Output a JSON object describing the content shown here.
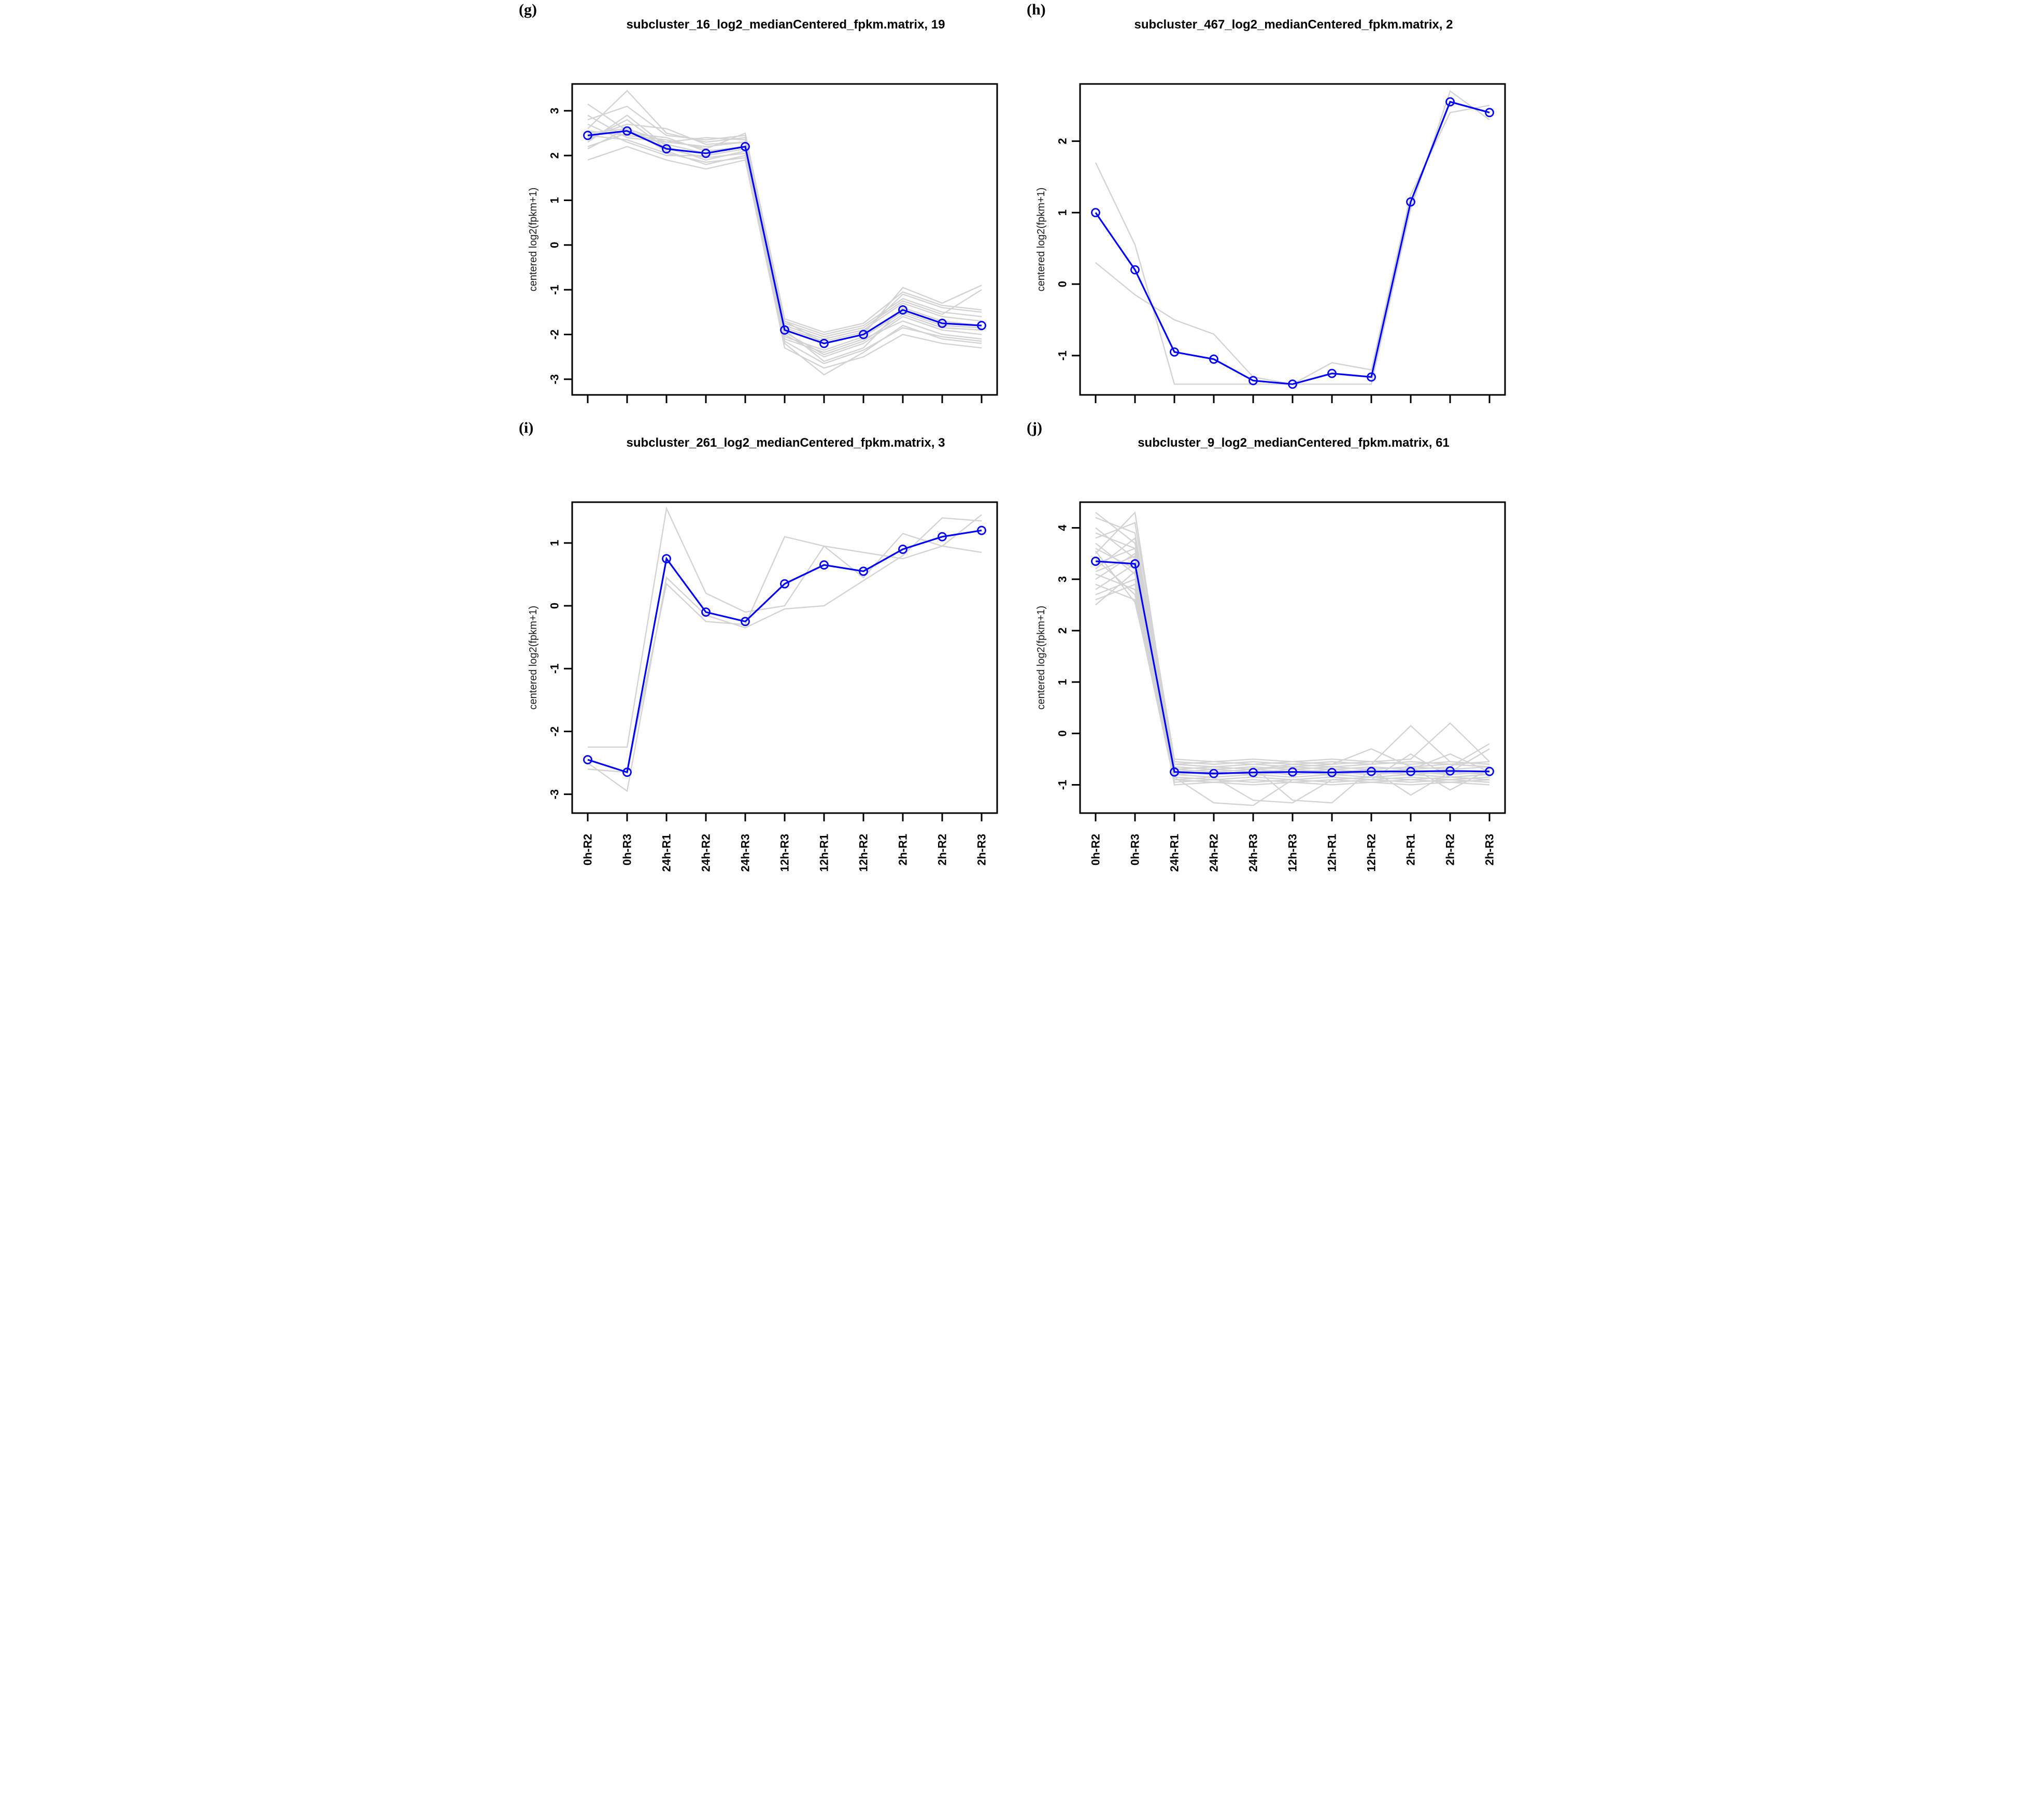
{
  "chart_data": {
    "type": "line",
    "ylabel": "centered log2(fpkm+1)",
    "grid": false,
    "legend": "none",
    "colors": {
      "mean": "#0000ff",
      "member": "#d3d3d3",
      "axis": "#000000"
    },
    "categories": [
      "0h-R2",
      "0h-R3",
      "24h-R1",
      "24h-R2",
      "24h-R3",
      "12h-R3",
      "12h-R1",
      "12h-R2",
      "2h-R1",
      "2h-R2",
      "2h-R3"
    ],
    "panels": [
      {
        "label": "(g)",
        "title": "subcluster_16_log2_medianCentered_fpkm.matrix, 19",
        "yticks": [
          3,
          2,
          1,
          0,
          -1,
          -2,
          -3
        ],
        "ylim": [
          -3.35,
          3.6
        ],
        "show_x_labels": false,
        "mean": [
          2.45,
          2.55,
          2.15,
          2.05,
          2.2,
          -1.9,
          -2.2,
          -2.0,
          -1.45,
          -1.75,
          -1.8
        ],
        "members": [
          [
            2.6,
            3.45,
            2.5,
            2.3,
            2.4,
            -1.8,
            -2.1,
            -1.9,
            -1.3,
            -1.6,
            -1.7
          ],
          [
            2.3,
            2.9,
            2.2,
            1.9,
            2.1,
            -2.0,
            -2.5,
            -2.2,
            -1.6,
            -1.9,
            -2.0
          ],
          [
            2.9,
            2.4,
            2.3,
            2.2,
            2.3,
            -1.7,
            -2.0,
            -1.8,
            -1.2,
            -1.5,
            -1.6
          ],
          [
            2.5,
            2.6,
            2.1,
            1.8,
            2.0,
            -2.1,
            -2.4,
            -2.1,
            -1.7,
            -2.0,
            -2.1
          ],
          [
            2.2,
            2.5,
            2.4,
            2.1,
            2.2,
            -1.9,
            -2.6,
            -2.3,
            -1.4,
            -1.7,
            -1.8
          ],
          [
            2.7,
            2.3,
            2.0,
            2.0,
            2.15,
            -2.2,
            -2.9,
            -2.4,
            -1.8,
            -2.1,
            -2.2
          ],
          [
            2.4,
            2.7,
            2.6,
            2.25,
            2.3,
            -1.85,
            -2.15,
            -1.95,
            -1.1,
            -1.4,
            -1.5
          ],
          [
            3.15,
            2.55,
            2.25,
            2.05,
            2.2,
            -2.05,
            -2.35,
            -2.05,
            -1.5,
            -1.8,
            -1.85
          ],
          [
            1.9,
            2.2,
            1.9,
            1.7,
            1.9,
            -2.3,
            -2.75,
            -2.5,
            -2.0,
            -2.2,
            -2.3
          ],
          [
            2.55,
            2.45,
            2.35,
            2.15,
            2.5,
            -1.75,
            -2.05,
            -1.85,
            -1.25,
            -1.55,
            -1.0
          ],
          [
            2.35,
            2.8,
            2.15,
            1.95,
            2.05,
            -1.95,
            -2.45,
            -2.15,
            -1.55,
            -1.85,
            -1.9
          ],
          [
            2.8,
            3.1,
            2.45,
            2.35,
            2.45,
            -1.65,
            -1.95,
            -1.75,
            -1.05,
            -1.35,
            -1.45
          ],
          [
            2.45,
            2.35,
            2.05,
            1.85,
            1.95,
            -2.15,
            -2.65,
            -2.35,
            -1.85,
            -2.05,
            -2.15
          ],
          [
            2.15,
            2.6,
            2.3,
            2.4,
            2.35,
            -1.7,
            -2.2,
            -2.0,
            -0.95,
            -1.3,
            -0.9
          ]
        ]
      },
      {
        "label": "(h)",
        "title": "subcluster_467_log2_medianCentered_fpkm.matrix, 2",
        "yticks": [
          2,
          1,
          0,
          -1
        ],
        "ylim": [
          -1.55,
          2.8
        ],
        "show_x_labels": false,
        "mean": [
          1.0,
          0.2,
          -0.95,
          -1.05,
          -1.35,
          -1.4,
          -1.25,
          -1.3,
          1.15,
          2.55,
          2.4
        ],
        "members": [
          [
            1.7,
            0.55,
            -1.4,
            -1.4,
            -1.4,
            -1.4,
            -1.4,
            -1.4,
            1.05,
            2.7,
            2.3
          ],
          [
            0.3,
            -0.15,
            -0.5,
            -0.7,
            -1.3,
            -1.4,
            -1.1,
            -1.2,
            1.25,
            2.4,
            2.5
          ]
        ]
      },
      {
        "label": "(i)",
        "title": "subcluster_261_log2_medianCentered_fpkm.matrix, 3",
        "yticks": [
          1,
          0,
          -1,
          -2,
          -3
        ],
        "ylim": [
          -3.3,
          1.65
        ],
        "show_x_labels": true,
        "mean": [
          -2.45,
          -2.65,
          0.75,
          -0.1,
          -0.25,
          0.35,
          0.65,
          0.55,
          0.9,
          1.1,
          1.2
        ],
        "members": [
          [
            -2.25,
            -2.25,
            1.55,
            0.2,
            -0.1,
            0.0,
            0.95,
            0.85,
            0.75,
            0.95,
            1.45
          ],
          [
            -2.5,
            -2.95,
            0.45,
            -0.15,
            -0.35,
            -0.05,
            0.0,
            0.4,
            0.8,
            1.4,
            1.35
          ],
          [
            -2.6,
            -2.65,
            0.35,
            -0.25,
            -0.3,
            1.1,
            0.95,
            0.45,
            1.15,
            0.95,
            0.85
          ]
        ]
      },
      {
        "label": "(j)",
        "title": "subcluster_9_log2_medianCentered_fpkm.matrix, 61",
        "yticks": [
          4,
          3,
          2,
          1,
          0,
          -1
        ],
        "ylim": [
          -1.55,
          4.5
        ],
        "show_x_labels": true,
        "mean": [
          3.35,
          3.3,
          -0.75,
          -0.78,
          -0.76,
          -0.75,
          -0.76,
          -0.74,
          -0.74,
          -0.73,
          -0.74
        ],
        "members": [
          [
            3.9,
            3.6,
            -0.6,
            -0.65,
            -0.7,
            -0.6,
            -0.65,
            -0.6,
            -0.55,
            -0.6,
            -0.65
          ],
          [
            3.1,
            2.8,
            -0.8,
            -0.85,
            -0.8,
            -0.85,
            -0.8,
            -0.85,
            -0.8,
            -0.85,
            -0.8
          ],
          [
            4.2,
            3.9,
            -0.55,
            -0.6,
            -0.55,
            -0.6,
            -0.55,
            -0.6,
            -0.55,
            -0.6,
            -0.55
          ],
          [
            2.8,
            3.3,
            -0.9,
            -0.95,
            -0.9,
            -0.95,
            -0.9,
            -0.95,
            -0.9,
            -0.95,
            -0.9
          ],
          [
            3.5,
            4.3,
            -0.65,
            -0.7,
            -0.65,
            -0.7,
            -0.65,
            -0.7,
            -0.65,
            -0.7,
            -0.65
          ],
          [
            2.6,
            2.9,
            -0.85,
            -1.35,
            -1.4,
            -0.9,
            -0.85,
            -0.9,
            -0.85,
            -0.9,
            -0.85
          ],
          [
            3.7,
            3.1,
            -0.7,
            -0.75,
            -0.7,
            -0.75,
            -0.7,
            -0.75,
            -0.7,
            -0.4,
            -0.75
          ],
          [
            3.3,
            3.6,
            -0.6,
            -0.65,
            -0.6,
            -0.65,
            -0.6,
            -0.3,
            -0.65,
            -0.6,
            -0.65
          ],
          [
            4.0,
            3.4,
            -0.75,
            -0.8,
            -0.75,
            -0.8,
            -0.75,
            -0.8,
            -0.75,
            -0.8,
            -0.75
          ],
          [
            2.9,
            2.6,
            -0.95,
            -0.9,
            -0.95,
            -0.9,
            -0.95,
            -0.9,
            -0.95,
            -0.9,
            -0.95
          ],
          [
            3.2,
            3.8,
            -0.55,
            -0.6,
            -0.55,
            -0.6,
            -0.55,
            -0.6,
            0.15,
            -0.55,
            -0.6
          ],
          [
            3.6,
            3.2,
            -0.8,
            -0.75,
            -0.8,
            -0.75,
            -0.8,
            -0.75,
            -0.8,
            -0.75,
            -0.8
          ],
          [
            2.7,
            3.0,
            -0.9,
            -0.85,
            -1.3,
            -1.35,
            -0.9,
            -0.85,
            -0.9,
            -0.85,
            -0.9
          ],
          [
            3.8,
            4.1,
            -0.5,
            -0.55,
            -0.5,
            -0.55,
            -0.5,
            -0.55,
            -0.5,
            0.2,
            -0.55
          ],
          [
            3.0,
            3.5,
            -0.7,
            -0.65,
            -0.7,
            -0.65,
            -0.7,
            -0.65,
            -0.7,
            -0.65,
            -0.2
          ],
          [
            3.4,
            2.7,
            -0.85,
            -0.9,
            -0.85,
            -0.9,
            -0.85,
            -0.9,
            -0.4,
            -0.85,
            -0.9
          ],
          [
            4.3,
            3.7,
            -0.6,
            -0.55,
            -0.6,
            -0.55,
            -0.6,
            -0.55,
            -0.6,
            -0.55,
            -0.6
          ],
          [
            2.5,
            3.15,
            -1.0,
            -0.95,
            -1.0,
            -0.95,
            -1.0,
            -0.95,
            -1.0,
            -0.95,
            -1.0
          ],
          [
            3.15,
            3.45,
            -0.65,
            -0.7,
            -0.65,
            -1.3,
            -1.35,
            -0.7,
            -0.65,
            -1.1,
            -0.7
          ],
          [
            3.55,
            2.55,
            -0.75,
            -0.7,
            -0.75,
            -0.7,
            -0.75,
            -0.7,
            -1.2,
            -0.75,
            -0.3
          ]
        ]
      }
    ]
  }
}
